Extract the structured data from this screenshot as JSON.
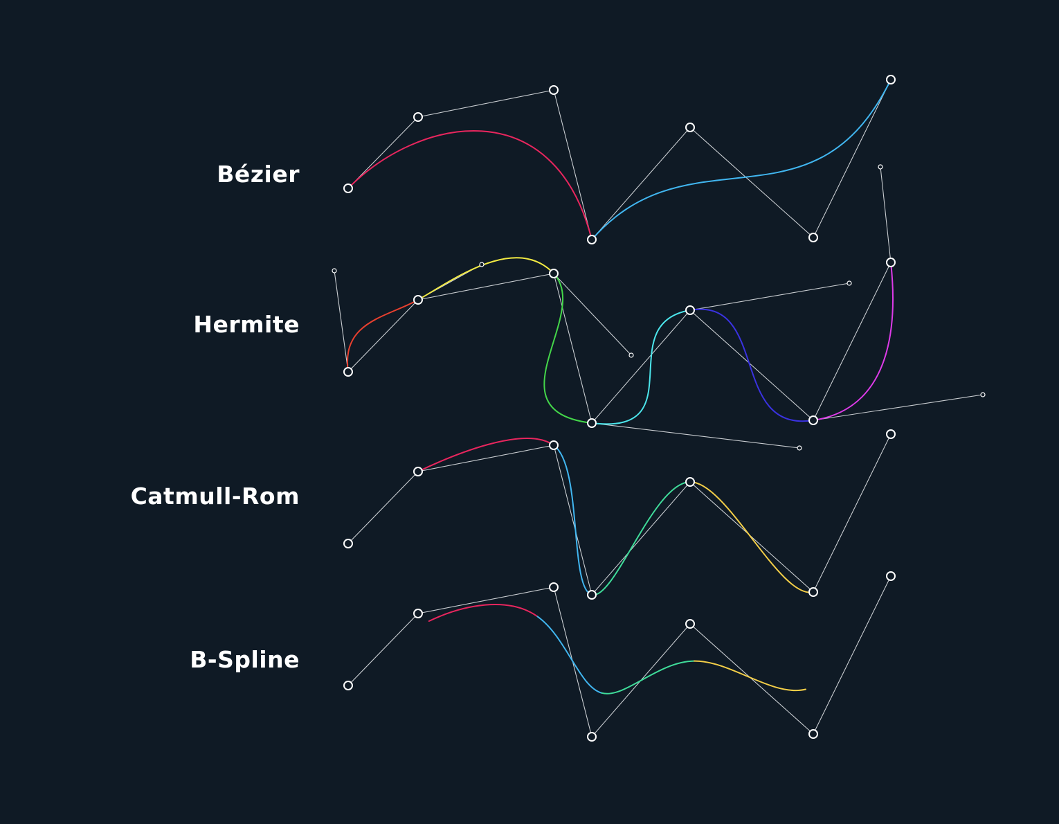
{
  "rows": [
    {
      "label": "Bézier",
      "key": "bezier",
      "segment_colors": [
        "#e8265e",
        "#41b6f0"
      ]
    },
    {
      "label": "Hermite",
      "key": "hermite",
      "segment_colors": [
        "#e8402f",
        "#f2ea43",
        "#44d64a",
        "#4ce6ec",
        "#3a32e0",
        "#dd3be8"
      ]
    },
    {
      "label": "Catmull-Rom",
      "key": "catmull_rom",
      "segment_colors": [
        "#e8265e",
        "#41b6f0",
        "#3fdc9a",
        "#f4cf48"
      ]
    },
    {
      "label": "B-Spline",
      "key": "b_spline",
      "segment_colors": [
        "#e8265e",
        "#41b6f0",
        "#3fdc9a",
        "#f4cf48"
      ]
    }
  ],
  "colors": {
    "background": "#0f1a25",
    "control_polygon": "#c9cdd1",
    "control_point": "#ffffff"
  }
}
